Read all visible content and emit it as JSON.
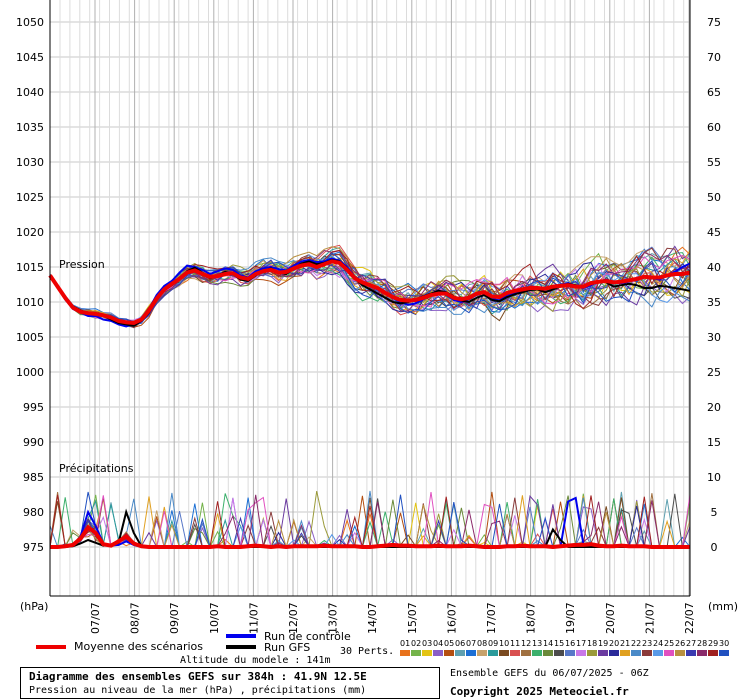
{
  "chart_data": {
    "type": "line",
    "x_dates": [
      "07/07",
      "08/07",
      "09/07",
      "10/07",
      "11/07",
      "12/07",
      "13/07",
      "14/07",
      "15/07",
      "16/07",
      "17/07",
      "18/07",
      "19/07",
      "20/07",
      "21/07",
      "22/07"
    ],
    "left_axis": {
      "unit": "(hPa)",
      "ticks": [
        975,
        980,
        985,
        990,
        995,
        1000,
        1005,
        1010,
        1015,
        1020,
        1025,
        1030,
        1035,
        1040,
        1045,
        1050
      ]
    },
    "right_axis": {
      "unit": "(mm)",
      "ticks": [
        0,
        5,
        10,
        15,
        20,
        25,
        30,
        35,
        40,
        45,
        50,
        55,
        60,
        65,
        70,
        75
      ]
    },
    "pressure_label": "Pression",
    "precip_label": "Précipitations",
    "series": [
      {
        "name": "Moyenne des scénarios",
        "color": "#ee0000",
        "pressure_hPa": [
          1013.8,
          1012.2,
          1010.6,
          1009.2,
          1008.6,
          1008.4,
          1008.3,
          1008.1,
          1007.8,
          1007.3,
          1007.1,
          1007.0,
          1007.5,
          1008.8,
          1010.5,
          1011.8,
          1012.6,
          1013.3,
          1014.2,
          1014.5,
          1014.0,
          1013.6,
          1013.7,
          1014.0,
          1014.1,
          1013.5,
          1013.3,
          1014.0,
          1014.4,
          1014.6,
          1014.2,
          1014.3,
          1014.8,
          1015.2,
          1015.4,
          1015.0,
          1015.4,
          1015.8,
          1015.6,
          1014.6,
          1013.4,
          1012.8,
          1012.4,
          1012.0,
          1011.3,
          1010.7,
          1010.3,
          1010.2,
          1010.3,
          1010.6,
          1011.0,
          1011.2,
          1011.2,
          1010.6,
          1010.4,
          1010.6,
          1011.2,
          1011.4,
          1010.8,
          1010.7,
          1011.3,
          1011.6,
          1011.8,
          1012.0,
          1012.0,
          1011.9,
          1012.2,
          1012.3,
          1012.4,
          1012.2,
          1012.2,
          1012.7,
          1012.9,
          1013.0,
          1012.8,
          1012.9,
          1013.1,
          1013.3,
          1013.6,
          1013.5,
          1013.5,
          1013.8,
          1014.0,
          1014.0,
          1014.2
        ],
        "precip_mm": [
          0,
          0,
          0.1,
          0.3,
          1.2,
          2.8,
          2.0,
          0.4,
          0.2,
          0.8,
          1.5,
          0.5,
          0.1,
          0,
          0,
          0,
          0,
          0,
          0,
          0,
          0,
          0,
          0.1,
          0,
          0,
          0,
          0.1,
          0.2,
          0.1,
          0,
          0.1,
          0,
          0.1,
          0.1,
          0.1,
          0.1,
          0.2,
          0.1,
          0.1,
          0.1,
          0.1,
          0,
          0,
          0.1,
          0.2,
          0.3,
          0.2,
          0.2,
          0.1,
          0.1,
          0.1,
          0.2,
          0.1,
          0.1,
          0.1,
          0.2,
          0.1,
          0,
          0,
          0,
          0.1,
          0.1,
          0.2,
          0.1,
          0.1,
          0.1,
          0,
          0.1,
          0.2,
          0.3,
          0.3,
          0.4,
          0.2,
          0.1,
          0.1,
          0.2,
          0.1,
          0.1,
          0.1,
          0,
          0,
          0,
          0,
          0,
          0
        ]
      },
      {
        "name": "Run de contrôle",
        "color": "#0000ee",
        "pressure_hPa": [
          1013.8,
          1012.0,
          1010.4,
          1009.0,
          1008.5,
          1008.0,
          1008.0,
          1007.5,
          1007.3,
          1006.8,
          1006.5,
          1006.9,
          1007.6,
          1009.0,
          1011.0,
          1012.3,
          1013.0,
          1014.2,
          1015.2,
          1015.0,
          1014.6,
          1014.0,
          1014.4,
          1014.8,
          1014.6,
          1013.8,
          1013.5,
          1014.4,
          1014.8,
          1015.0,
          1014.7,
          1014.5,
          1015.2,
          1015.8,
          1016.0,
          1015.7,
          1015.8,
          1016.2,
          1015.9,
          1015.0,
          1013.6,
          1012.8,
          1012.5,
          1011.8,
          1011.2,
          1010.6,
          1010.0,
          1009.6,
          1009.8,
          1010.4,
          1010.9,
          1011.3,
          1011.0,
          1010.3,
          1010.0,
          1010.4,
          1011.0,
          1011.5,
          1010.5,
          1010.2,
          1011.0,
          1011.3,
          1011.6,
          1011.9,
          1012.1,
          1011.8,
          1012.3,
          1012.4,
          1012.7,
          1012.2,
          1012.0,
          1012.4,
          1012.9,
          1013.2,
          1012.8,
          1012.7,
          1012.9,
          1013.3,
          1013.6,
          1013.4,
          1013.2,
          1013.8,
          1014.3,
          1015.0,
          1015.5
        ],
        "precip_mm": [
          0,
          0,
          0,
          0.2,
          1.5,
          5.0,
          3.0,
          0.5,
          0.2,
          0.3,
          0.8,
          0.3,
          0,
          0,
          0,
          0,
          0,
          0,
          0,
          0,
          0,
          0,
          0,
          0,
          0,
          0,
          0,
          0,
          0,
          0,
          0,
          0,
          0,
          0,
          0,
          0,
          0,
          0,
          0,
          0,
          0,
          0,
          0,
          0,
          0,
          0,
          0,
          0,
          0,
          0,
          0,
          0,
          0,
          0,
          0,
          0,
          0,
          0,
          0,
          0,
          0,
          0,
          0,
          0,
          0,
          0,
          0,
          0,
          6.5,
          7.0,
          0.5,
          0,
          0,
          0,
          0,
          0,
          0,
          0,
          0,
          0,
          0,
          0,
          0,
          0,
          0
        ]
      },
      {
        "name": "Run GFS",
        "color": "#000000",
        "pressure_hPa": [
          1013.8,
          1012.3,
          1010.7,
          1009.4,
          1008.8,
          1008.3,
          1008.4,
          1008.0,
          1007.5,
          1007.0,
          1006.8,
          1006.6,
          1007.3,
          1008.5,
          1010.4,
          1011.7,
          1012.4,
          1013.2,
          1014.4,
          1014.9,
          1014.2,
          1013.4,
          1013.8,
          1014.3,
          1014.0,
          1013.2,
          1013.0,
          1013.8,
          1014.4,
          1014.8,
          1014.2,
          1014.0,
          1014.8,
          1015.5,
          1015.8,
          1015.4,
          1015.6,
          1016.0,
          1015.8,
          1014.8,
          1013.4,
          1012.4,
          1011.8,
          1011.2,
          1010.6,
          1010.0,
          1009.8,
          1010.0,
          1010.4,
          1010.8,
          1011.2,
          1011.6,
          1011.4,
          1010.8,
          1010.2,
          1010.0,
          1010.6,
          1011.0,
          1010.3,
          1010.1,
          1010.7,
          1011.1,
          1011.4,
          1011.7,
          1011.8,
          1011.4,
          1011.8,
          1012.2,
          1012.6,
          1012.4,
          1012.2,
          1012.6,
          1013.0,
          1012.8,
          1012.2,
          1012.4,
          1012.6,
          1012.4,
          1012.0,
          1012.0,
          1012.3,
          1012.2,
          1012.0,
          1011.8,
          1011.6
        ],
        "precip_mm": [
          0,
          0,
          0,
          0.1,
          0.5,
          1.0,
          0.6,
          0.2,
          0.3,
          0.6,
          5.0,
          2.0,
          0.1,
          0,
          0,
          0,
          0,
          0,
          0,
          0,
          0,
          0,
          0,
          0,
          0,
          0,
          0,
          0,
          0,
          0,
          0,
          0,
          0,
          0,
          0,
          0,
          0,
          0,
          0,
          0,
          0,
          0,
          0,
          0,
          0,
          0,
          0,
          0,
          0,
          0,
          0,
          0,
          0,
          0,
          0,
          0,
          0,
          0,
          0,
          0,
          0,
          0,
          0,
          0,
          0,
          0,
          2.5,
          1.0,
          0,
          0,
          0,
          0,
          0,
          0,
          0,
          0,
          0,
          0,
          0,
          0,
          0,
          0,
          0,
          0,
          0
        ]
      }
    ],
    "perturbations": {
      "label": "30 Perts.",
      "ids": [
        "01",
        "02",
        "03",
        "04",
        "05",
        "06",
        "07",
        "08",
        "09",
        "10",
        "11",
        "12",
        "13",
        "14",
        "15",
        "16",
        "17",
        "18",
        "19",
        "20",
        "21",
        "22",
        "23",
        "24",
        "25",
        "26",
        "27",
        "28",
        "29",
        "30"
      ],
      "colors": [
        "#e8721c",
        "#74b34a",
        "#e3c414",
        "#8a5ec6",
        "#b44e10",
        "#5fa0b0",
        "#1c6fd4",
        "#c7a26b",
        "#2b9a9a",
        "#7a4a20",
        "#d95050",
        "#a07040",
        "#3cb06c",
        "#6a8a3a",
        "#4c4c4c",
        "#5878c8",
        "#c878e8",
        "#9a9a3a",
        "#6a3aa0",
        "#2a2a9a",
        "#e0a020",
        "#4a8ac8",
        "#8a3a3a",
        "#5a9ae8",
        "#e050c0",
        "#b89040",
        "#3a3ab0",
        "#8a2a6a",
        "#a02020",
        "#2050c0"
      ]
    },
    "legend": {
      "mean": "Moyenne des scénarios",
      "control": "Run de contrôle",
      "gfs": "Run GFS"
    }
  },
  "footer": {
    "altitude": "Altitude du modele : 141m",
    "title": "Diagramme des ensembles GEFS sur 384h : 41.9N 12.5E",
    "subtitle": "Pression au niveau de la mer (hPa) , précipitations (mm)",
    "ens_date": "Ensemble GEFS du 06/07/2025 - 06Z",
    "copyright": "Copyright 2025 Meteociel.fr"
  }
}
